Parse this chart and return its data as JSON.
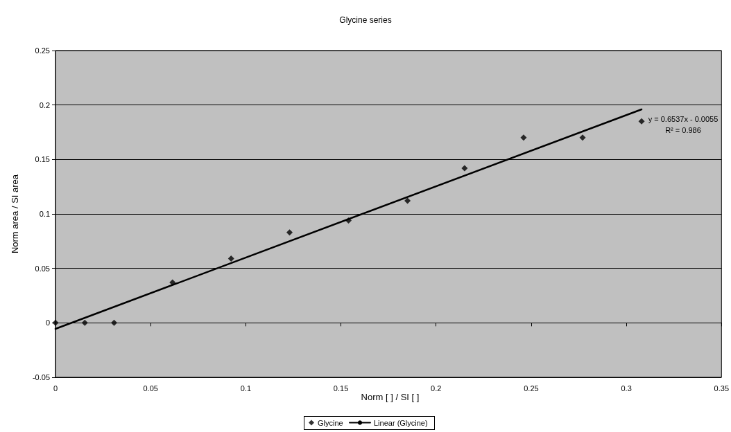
{
  "chart_data": {
    "type": "scatter",
    "title": "Glycine series",
    "xlabel": "Norm [ ] / SI [ ]",
    "ylabel": "Norm area / SI area",
    "series": [
      {
        "name": "Glycine",
        "color": "#000000",
        "x": [
          0,
          0.0154,
          0.0308,
          0.0615,
          0.0923,
          0.123,
          0.154,
          0.185,
          0.215,
          0.246,
          0.277,
          0.308
        ],
        "values": [
          0,
          0,
          0,
          0.037,
          0.059,
          0.083,
          0.094,
          0.112,
          0.142,
          0.17,
          0.17,
          0.185
        ]
      },
      {
        "name": "Linear (Glycine)",
        "type": "line",
        "color": "#000000",
        "marker": "none",
        "x": [
          0,
          0.308
        ],
        "values": [
          -0.0055,
          0.196
        ]
      }
    ],
    "xlim": [
      0,
      0.35
    ],
    "xticks": [
      0,
      0.05,
      0.1,
      0.15,
      0.2,
      0.25,
      0.3,
      0.35
    ],
    "ylim": [
      -0.05,
      0.25
    ],
    "yticks": [
      -0.05,
      0,
      0.05,
      0.1,
      0.15,
      0.2,
      0.25
    ],
    "annotations": [
      "y = 0.6537x - 0.0055",
      "R² = 0.986"
    ],
    "grid": "y",
    "legend": "bottom",
    "marker": "diamond",
    "line_style": "solid"
  }
}
